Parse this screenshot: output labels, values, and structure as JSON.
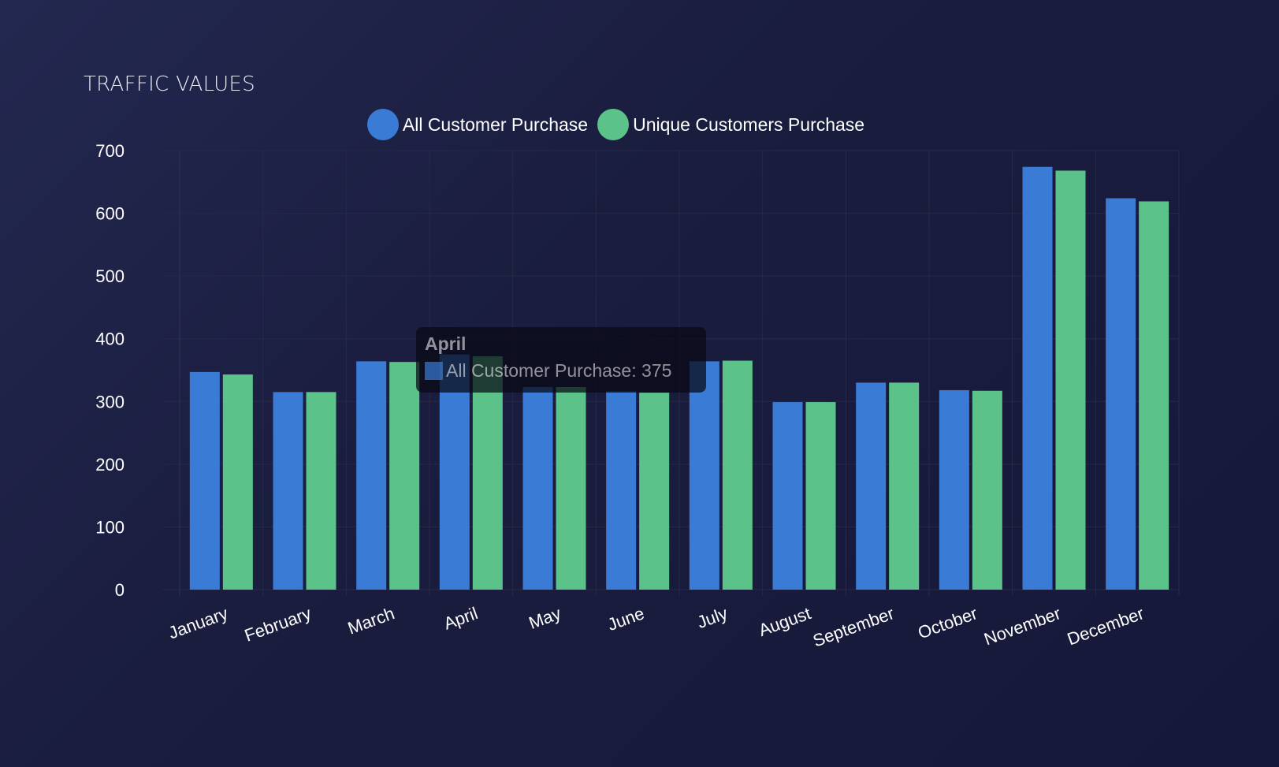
{
  "card": {
    "title": "TRAFFIC VALUES"
  },
  "legend": [
    {
      "label": "All Customer Purchase",
      "color": "#3a7bd5"
    },
    {
      "label": "Unique Customers Purchase",
      "color": "#5bc38a"
    }
  ],
  "tooltip": {
    "title": "April",
    "text": "All Customer Purchase: 375",
    "swatch_color": "#3a7bd5"
  },
  "colors": {
    "grid": "#262a48",
    "axis_text": "#ffffff"
  },
  "chart_data": {
    "type": "bar",
    "title": "TRAFFIC VALUES",
    "categories": [
      "January",
      "February",
      "March",
      "April",
      "May",
      "June",
      "July",
      "August",
      "September",
      "October",
      "November",
      "December"
    ],
    "series": [
      {
        "name": "All Customer Purchase",
        "color": "#3a7bd5",
        "values": [
          347,
          315,
          364,
          375,
          323,
          316,
          364,
          299,
          330,
          318,
          674,
          624
        ]
      },
      {
        "name": "Unique Customers Purchase",
        "color": "#5bc38a",
        "values": [
          343,
          315,
          363,
          372,
          323,
          314,
          365,
          299,
          330,
          317,
          668,
          619
        ]
      }
    ],
    "yticks": [
      0,
      100,
      200,
      300,
      400,
      500,
      600,
      700
    ],
    "ylim": [
      0,
      700
    ],
    "xlabel": "",
    "ylabel": "",
    "grid": true,
    "legend": "top-center"
  }
}
